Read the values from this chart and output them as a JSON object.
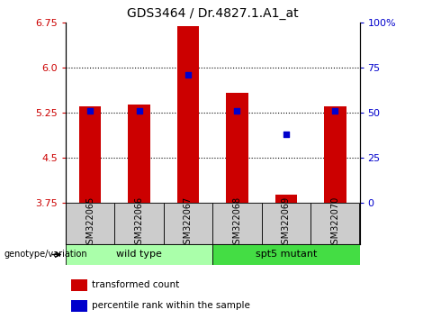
{
  "title": "GDS3464 / Dr.4827.1.A1_at",
  "samples": [
    "GSM322065",
    "GSM322066",
    "GSM322067",
    "GSM322068",
    "GSM322069",
    "GSM322070"
  ],
  "red_values": [
    5.35,
    5.38,
    6.68,
    5.58,
    3.88,
    5.35
  ],
  "blue_values": [
    5.28,
    5.28,
    5.88,
    5.28,
    4.88,
    5.28
  ],
  "ylim_left": [
    3.75,
    6.75
  ],
  "yticks_left": [
    3.75,
    4.5,
    5.25,
    6.0,
    6.75
  ],
  "yticks_right": [
    0,
    25,
    50,
    75,
    100
  ],
  "bar_color": "#cc0000",
  "dot_color": "#0000cc",
  "grid_color": "#000000",
  "wild_type_samples": [
    0,
    1,
    2
  ],
  "spt5_mutant_samples": [
    3,
    4,
    5
  ],
  "wild_type_label": "wild type",
  "spt5_mutant_label": "spt5 mutant",
  "genotype_label": "genotype/variation",
  "legend_red": "transformed count",
  "legend_blue": "percentile rank within the sample",
  "wild_type_color": "#aaffaa",
  "spt5_mutant_color": "#44dd44",
  "tick_label_color_left": "#cc0000",
  "tick_label_color_right": "#0000cc",
  "bar_bottom": 3.75,
  "bar_width": 0.45,
  "sample_box_color": "#cccccc",
  "dot_size": 22
}
